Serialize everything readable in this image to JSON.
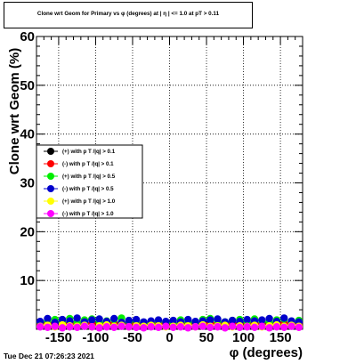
{
  "title": "Clone wrt Geom for Primary vs φ (degrees) at | η | <= 1.0 at pT > 0.11",
  "footer": "Tue Dec 21 07:26:23 2021",
  "chart_data": {
    "type": "scatter",
    "title": "Clone wrt Geom for Primary vs φ (degrees) at | η | <= 1.0 at pT > 0.11",
    "xlabel": "φ (degrees)",
    "ylabel": "Clone wrt Geom (%)",
    "xlim": [
      -180,
      180
    ],
    "ylim": [
      0,
      60
    ],
    "x_ticks": [
      -150,
      -100,
      -50,
      0,
      50,
      100,
      150
    ],
    "y_ticks": [
      10,
      20,
      30,
      40,
      50,
      60
    ],
    "grid": true,
    "legend_position": "left",
    "series": [
      {
        "name": "(+) with p T /|q| > 0.1",
        "color": "#000000",
        "x": [
          -175,
          -165,
          -155,
          -145,
          -135,
          -125,
          -115,
          -105,
          -95,
          -85,
          -75,
          -65,
          -55,
          -45,
          -35,
          -25,
          -15,
          -5,
          5,
          15,
          25,
          35,
          45,
          55,
          65,
          75,
          85,
          95,
          105,
          115,
          125,
          135,
          145,
          155,
          165,
          175
        ],
        "y": [
          1.2,
          1.4,
          1.1,
          1.3,
          1.2,
          1.5,
          1.1,
          1.3,
          1.2,
          1.4,
          1.1,
          1.3,
          1.2,
          1.0,
          1.3,
          1.2,
          1.1,
          1.2,
          1.3,
          1.1,
          1.2,
          1.4,
          1.1,
          1.3,
          1.2,
          1.1,
          1.3,
          1.2,
          1.4,
          1.1,
          1.3,
          1.2,
          1.4,
          1.1,
          1.3,
          1.2
        ]
      },
      {
        "name": "(-) with p T /|q| > 0.1",
        "color": "#ff0000",
        "x": [
          -175,
          -165,
          -155,
          -145,
          -135,
          -125,
          -115,
          -105,
          -95,
          -85,
          -75,
          -65,
          -55,
          -45,
          -35,
          -25,
          -15,
          -5,
          5,
          15,
          25,
          35,
          45,
          55,
          65,
          75,
          85,
          95,
          105,
          115,
          125,
          135,
          145,
          155,
          165,
          175
        ],
        "y": [
          1.3,
          1.1,
          1.4,
          1.2,
          1.3,
          1.1,
          1.4,
          1.2,
          1.3,
          1.1,
          1.4,
          1.2,
          1.3,
          1.1,
          1.2,
          1.4,
          1.2,
          1.3,
          1.1,
          1.3,
          1.2,
          1.1,
          1.4,
          1.2,
          1.3,
          1.1,
          1.2,
          1.4,
          1.2,
          1.3,
          1.1,
          1.4,
          1.2,
          1.3,
          1.1,
          1.2
        ]
      },
      {
        "name": "(+) with p T /|q| > 0.5",
        "color": "#00ee00",
        "x": [
          -175,
          -165,
          -155,
          -145,
          -135,
          -125,
          -115,
          -105,
          -95,
          -85,
          -75,
          -65,
          -55,
          -45,
          -35,
          -25,
          -15,
          -5,
          5,
          15,
          25,
          35,
          45,
          55,
          65,
          75,
          85,
          95,
          105,
          115,
          125,
          135,
          145,
          155,
          165,
          175
        ],
        "y": [
          1.5,
          1.8,
          2.0,
          1.6,
          2.2,
          1.4,
          1.9,
          2.1,
          1.5,
          1.7,
          2.0,
          2.3,
          1.6,
          1.8,
          1.4,
          1.2,
          1.7,
          1.5,
          1.3,
          1.9,
          1.6,
          1.4,
          2.0,
          2.2,
          1.7,
          1.5,
          1.8,
          2.0,
          1.6,
          2.1,
          1.7,
          1.5,
          1.9,
          2.1,
          1.6,
          1.8
        ]
      },
      {
        "name": "(-) with p T /|q| > 0.5",
        "color": "#0000cc",
        "x": [
          -175,
          -165,
          -155,
          -145,
          -135,
          -125,
          -115,
          -105,
          -95,
          -85,
          -75,
          -65,
          -55,
          -45,
          -35,
          -25,
          -15,
          -5,
          5,
          15,
          25,
          35,
          45,
          55,
          65,
          75,
          85,
          95,
          105,
          115,
          125,
          135,
          145,
          155,
          165,
          175
        ],
        "y": [
          1.6,
          2.2,
          1.4,
          2.0,
          1.7,
          2.3,
          1.5,
          1.9,
          2.1,
          1.6,
          2.2,
          1.4,
          1.8,
          2.0,
          1.5,
          1.7,
          1.9,
          1.6,
          1.8,
          1.5,
          2.0,
          1.6,
          1.7,
          1.9,
          2.1,
          1.5,
          1.8,
          1.6,
          2.0,
          1.7,
          1.9,
          2.2,
          1.6,
          2.3,
          1.7,
          1.5
        ]
      },
      {
        "name": "(+) with p T /|q| > 1.0",
        "color": "#ffff00",
        "x": [
          -175,
          -165,
          -155,
          -145,
          -135,
          -125,
          -115,
          -105,
          -95,
          -85,
          -75,
          -65,
          -55,
          -45,
          -35,
          -25,
          -15,
          -5,
          5,
          15,
          25,
          35,
          45,
          55,
          65,
          75,
          85,
          95,
          105,
          115,
          125,
          135,
          145,
          155,
          165,
          175
        ],
        "y": [
          0.6,
          0.8,
          0.5,
          0.9,
          0.7,
          0.6,
          0.8,
          0.5,
          0.7,
          0.9,
          0.6,
          0.8,
          0.5,
          0.7,
          0.6,
          0.8,
          0.7,
          0.5,
          0.6,
          0.8,
          0.7,
          0.5,
          0.9,
          0.6,
          0.7,
          0.8,
          0.5,
          0.7,
          0.6,
          0.8,
          0.5,
          0.7,
          0.9,
          0.6,
          0.8,
          0.6
        ]
      },
      {
        "name": "(-) with p T /|q| > 1.0",
        "color": "#ff00ff",
        "x": [
          -175,
          -165,
          -155,
          -145,
          -135,
          -125,
          -115,
          -105,
          -95,
          -85,
          -75,
          -65,
          -55,
          -45,
          -35,
          -25,
          -15,
          -5,
          5,
          15,
          25,
          35,
          45,
          55,
          65,
          75,
          85,
          95,
          105,
          115,
          125,
          135,
          145,
          155,
          165,
          175
        ],
        "y": [
          0.5,
          0.4,
          0.6,
          0.3,
          0.5,
          0.4,
          0.6,
          0.5,
          0.3,
          0.5,
          0.4,
          0.6,
          0.5,
          0.4,
          0.3,
          0.5,
          0.4,
          0.6,
          0.4,
          0.5,
          0.3,
          0.5,
          0.6,
          0.4,
          0.5,
          0.3,
          0.6,
          0.4,
          0.5,
          0.4,
          0.6,
          0.3,
          0.5,
          0.4,
          0.6,
          0.4
        ]
      }
    ]
  }
}
